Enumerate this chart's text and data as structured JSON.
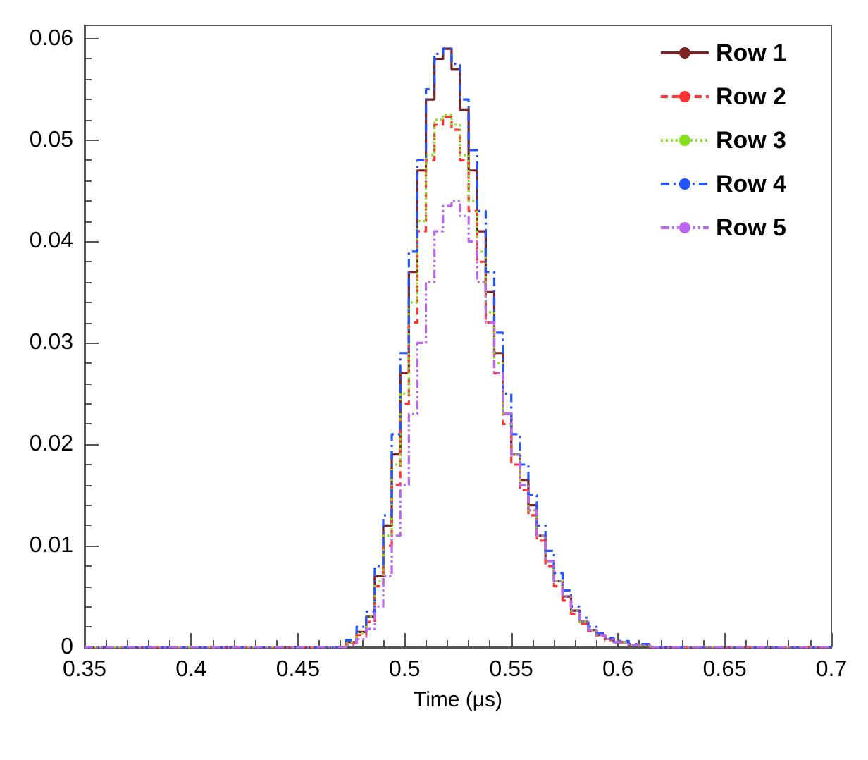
{
  "chart_data": {
    "type": "step",
    "xlabel": "Time (μs)",
    "x": [
      0.35,
      0.47,
      0.475,
      0.48,
      0.484,
      0.488,
      0.492,
      0.496,
      0.5,
      0.504,
      0.508,
      0.512,
      0.516,
      0.52,
      0.524,
      0.528,
      0.532,
      0.536,
      0.54,
      0.544,
      0.548,
      0.552,
      0.556,
      0.56,
      0.564,
      0.568,
      0.572,
      0.576,
      0.58,
      0.584,
      0.588,
      0.592,
      0.596,
      0.6,
      0.61,
      0.62,
      0.7
    ],
    "series": [
      {
        "name": "Row 1",
        "color": "#7b2323",
        "line_style": "solid",
        "values": [
          0,
          0,
          0.0005,
          0.0015,
          0.003,
          0.007,
          0.012,
          0.019,
          0.027,
          0.037,
          0.047,
          0.054,
          0.058,
          0.059,
          0.057,
          0.053,
          0.047,
          0.041,
          0.035,
          0.029,
          0.023,
          0.019,
          0.0165,
          0.014,
          0.011,
          0.0085,
          0.0065,
          0.005,
          0.0036,
          0.0025,
          0.0017,
          0.0012,
          0.0008,
          0.0005,
          0.0002,
          0,
          0
        ]
      },
      {
        "name": "Row 2",
        "color": "#ff3333",
        "line_style": "dashed",
        "values": [
          0,
          0,
          0.0004,
          0.0012,
          0.0025,
          0.006,
          0.01,
          0.016,
          0.024,
          0.032,
          0.041,
          0.048,
          0.0515,
          0.0523,
          0.051,
          0.048,
          0.043,
          0.038,
          0.032,
          0.027,
          0.022,
          0.018,
          0.0155,
          0.013,
          0.0105,
          0.008,
          0.006,
          0.0046,
          0.0033,
          0.0023,
          0.0016,
          0.0011,
          0.0007,
          0.0005,
          0.0002,
          0,
          0
        ]
      },
      {
        "name": "Row 3",
        "color": "#88e022",
        "line_style": "dotted",
        "values": [
          0,
          0,
          0.0005,
          0.0014,
          0.003,
          0.0065,
          0.011,
          0.018,
          0.025,
          0.034,
          0.042,
          0.0485,
          0.052,
          0.0525,
          0.0515,
          0.0485,
          0.044,
          0.039,
          0.033,
          0.028,
          0.023,
          0.019,
          0.016,
          0.0135,
          0.011,
          0.0085,
          0.0065,
          0.005,
          0.0036,
          0.0025,
          0.0017,
          0.0012,
          0.0008,
          0.0005,
          0.0002,
          0,
          0
        ]
      },
      {
        "name": "Row 4",
        "color": "#2255ff",
        "line_style": "dashdot",
        "values": [
          0,
          0,
          0.0007,
          0.002,
          0.0035,
          0.008,
          0.013,
          0.021,
          0.029,
          0.039,
          0.048,
          0.055,
          0.0585,
          0.059,
          0.0575,
          0.054,
          0.049,
          0.043,
          0.037,
          0.031,
          0.025,
          0.021,
          0.018,
          0.015,
          0.012,
          0.0095,
          0.0073,
          0.0056,
          0.004,
          0.0029,
          0.002,
          0.0014,
          0.0009,
          0.0006,
          0.0003,
          0,
          0
        ]
      },
      {
        "name": "Row 5",
        "color": "#bb66ee",
        "line_style": "dashdotdot",
        "values": [
          0,
          0,
          0.0002,
          0.0008,
          0.0018,
          0.004,
          0.007,
          0.011,
          0.016,
          0.023,
          0.03,
          0.036,
          0.041,
          0.0435,
          0.044,
          0.0425,
          0.04,
          0.036,
          0.032,
          0.027,
          0.023,
          0.019,
          0.016,
          0.0135,
          0.011,
          0.0085,
          0.0065,
          0.005,
          0.0036,
          0.0025,
          0.0017,
          0.0012,
          0.0008,
          0.0005,
          0.0002,
          0,
          0
        ]
      }
    ],
    "xlim": [
      0.35,
      0.7
    ],
    "xticks": [
      0.35,
      0.4,
      0.45,
      0.5,
      0.55,
      0.6,
      0.65,
      0.7
    ],
    "ylim": [
      0,
      0.0613
    ],
    "yticks": [
      0,
      0.01,
      0.02,
      0.03,
      0.04,
      0.05,
      0.06
    ],
    "grid": false,
    "legend": "top right"
  }
}
